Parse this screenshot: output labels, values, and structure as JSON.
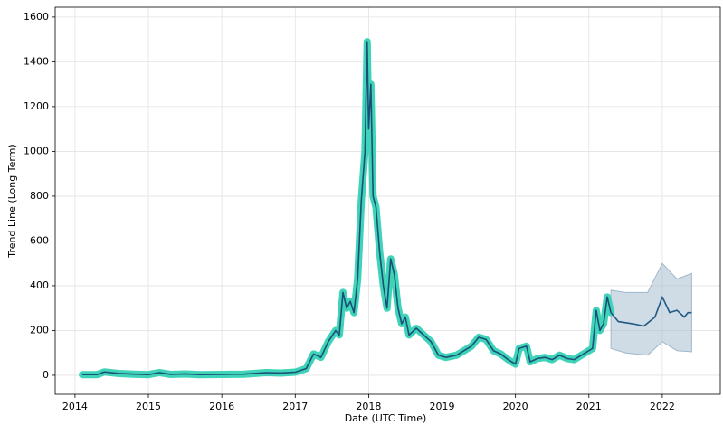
{
  "chart_data": {
    "type": "line",
    "x_label": "Date (UTC Time)",
    "y_label": "Trend Line (Long Term)",
    "xlim": [
      2013.73,
      2022.79
    ],
    "ylim": [
      -85,
      1644
    ],
    "xticks": [
      2014,
      2015,
      2016,
      2017,
      2018,
      2019,
      2020,
      2021,
      2022
    ],
    "yticks": [
      0,
      200,
      400,
      600,
      800,
      1000,
      1200,
      1400,
      1600
    ],
    "grid": true,
    "series": [
      {
        "color": "#1b4f78",
        "outline_color": "#3fd3b8",
        "x": [
          2014.1,
          2014.3,
          2014.4,
          2014.6,
          2014.8,
          2015.0,
          2015.15,
          2015.3,
          2015.5,
          2015.7,
          2016.0,
          2016.3,
          2016.6,
          2016.8,
          2017.0,
          2017.15,
          2017.25,
          2017.35,
          2017.45,
          2017.55,
          2017.6,
          2017.65,
          2017.7,
          2017.75,
          2017.8,
          2017.85,
          2017.9,
          2017.95,
          2017.98,
          2018.0,
          2018.03,
          2018.06,
          2018.1,
          2018.15,
          2018.2,
          2018.25,
          2018.3,
          2018.35,
          2018.4,
          2018.45,
          2018.5,
          2018.55,
          2018.65,
          2018.75,
          2018.85,
          2018.95,
          2019.05,
          2019.2,
          2019.3,
          2019.4,
          2019.5,
          2019.6,
          2019.7,
          2019.8,
          2019.9,
          2020.0,
          2020.05,
          2020.15,
          2020.2,
          2020.3,
          2020.4,
          2020.5,
          2020.6,
          2020.7,
          2020.8,
          2020.9,
          2021.0,
          2021.05,
          2021.1,
          2021.15,
          2021.2,
          2021.25,
          2021.3
        ],
        "values": [
          3,
          3,
          15,
          8,
          5,
          3,
          12,
          4,
          6,
          3,
          4,
          5,
          12,
          10,
          14,
          30,
          95,
          80,
          150,
          200,
          180,
          370,
          300,
          330,
          280,
          430,
          780,
          1000,
          1490,
          1100,
          1300,
          800,
          750,
          550,
          400,
          300,
          520,
          450,
          300,
          230,
          260,
          180,
          210,
          180,
          150,
          90,
          80,
          90,
          110,
          130,
          170,
          160,
          110,
          95,
          70,
          50,
          120,
          130,
          60,
          75,
          80,
          70,
          90,
          75,
          70,
          90,
          110,
          120,
          290,
          200,
          230,
          350,
          280
        ]
      },
      {
        "color": "#1f5a85",
        "x": [
          2021.3,
          2021.4,
          2021.6,
          2021.75,
          2021.9,
          2022.0,
          2022.1,
          2022.2,
          2022.3,
          2022.35,
          2022.4
        ],
        "values": [
          280,
          240,
          230,
          220,
          260,
          350,
          280,
          290,
          260,
          280,
          280
        ]
      }
    ],
    "band": {
      "color": "#9fb8cc",
      "x": [
        2021.3,
        2021.5,
        2021.8,
        2022.0,
        2022.2,
        2022.4
      ],
      "lower": [
        120,
        100,
        90,
        150,
        110,
        105
      ],
      "upper": [
        380,
        370,
        370,
        500,
        430,
        455
      ]
    }
  }
}
